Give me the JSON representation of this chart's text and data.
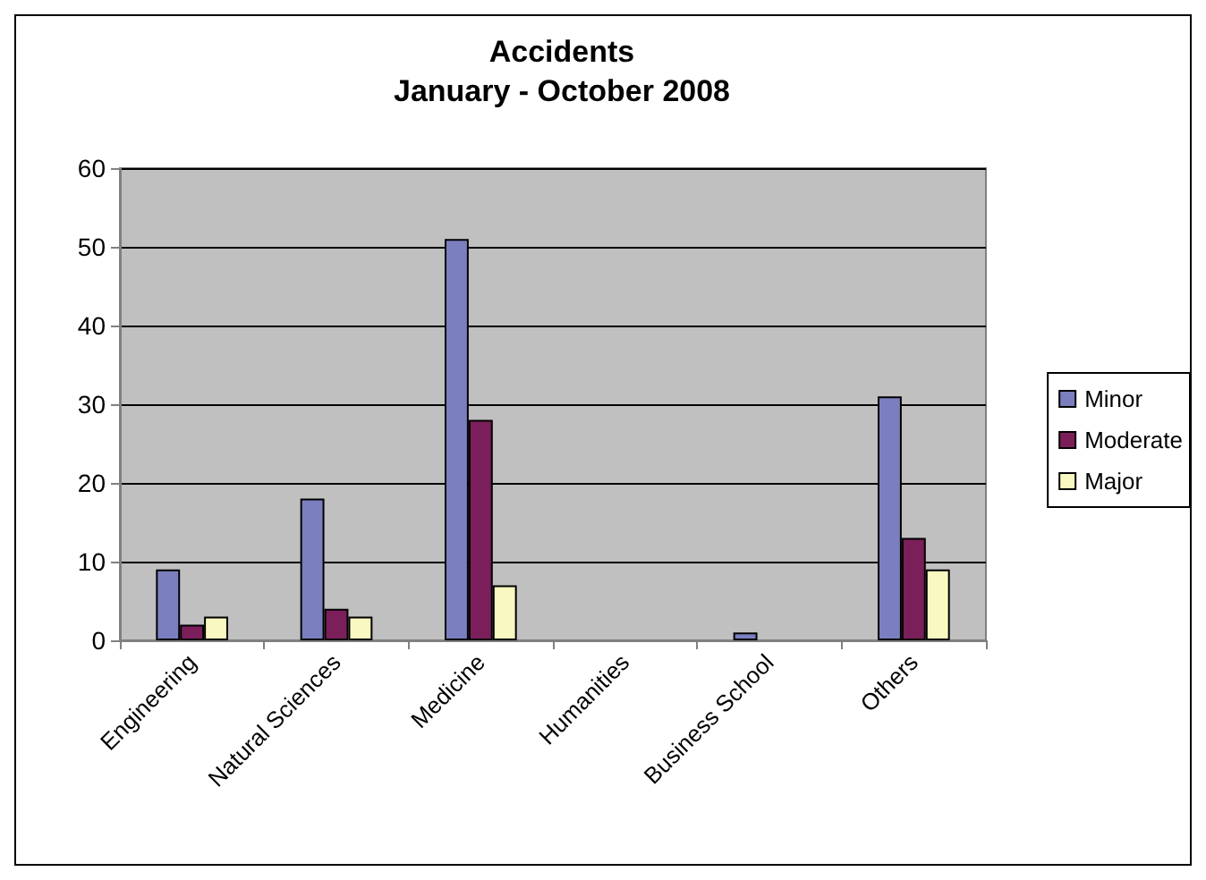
{
  "chart_data": {
    "type": "bar",
    "title": "Accidents\nJanuary - October 2008",
    "categories": [
      "Engineering",
      "Natural Sciences",
      "Medicine",
      "Humanities",
      "Business School",
      "Others"
    ],
    "series": [
      {
        "name": "Minor",
        "color": "#7b7fbf",
        "values": [
          9,
          18,
          51,
          0,
          1,
          31
        ]
      },
      {
        "name": "Moderate",
        "color": "#7b1f5a",
        "values": [
          2,
          4,
          28,
          0,
          0,
          13
        ]
      },
      {
        "name": "Major",
        "color": "#f8f8c0",
        "values": [
          3,
          3,
          7,
          0,
          0,
          9
        ]
      }
    ],
    "ylim": [
      0,
      60
    ],
    "yticks": [
      0,
      10,
      20,
      30,
      40,
      50,
      60
    ],
    "grid": "y",
    "legend": "right"
  }
}
